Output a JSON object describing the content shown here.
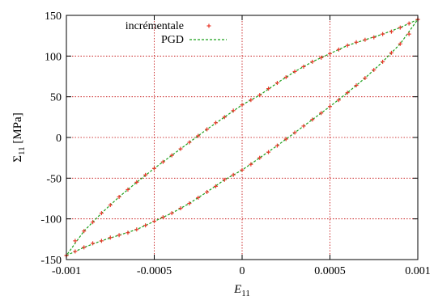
{
  "chart_data": {
    "type": "line",
    "title": "",
    "xlabel": {
      "main": "E",
      "sub": "11"
    },
    "ylabel": {
      "main": "Σ",
      "sub": "11",
      "unit": " [MPa]"
    },
    "xlim": [
      -0.001,
      0.001
    ],
    "ylim": [
      -150,
      150
    ],
    "x_ticks": [
      -0.001,
      -0.0005,
      0,
      0.0005,
      0.001
    ],
    "x_tick_labels": [
      "-0.001",
      "-0.0005",
      "0",
      "0.0005",
      "0.001"
    ],
    "y_ticks": [
      -150,
      -100,
      -50,
      0,
      50,
      100,
      150
    ],
    "y_tick_labels": [
      "-150",
      "-100",
      "-50",
      "0",
      "50",
      "100",
      "150"
    ],
    "grid": true,
    "legend_position": "top-left",
    "colors": {
      "incremental": "#e8392b",
      "pgd": "#1aa01a",
      "grid": "#c00000"
    },
    "series": [
      {
        "name": "incrémentale",
        "style": "points",
        "branches": [
          {
            "x": [
              0.001,
              0.00095,
              0.0009,
              0.00085,
              0.0008,
              0.00075,
              0.0007,
              0.00065,
              0.0006,
              0.00055,
              0.0005,
              0.00045,
              0.0004,
              0.00035,
              0.0003,
              0.00025,
              0.0002,
              0.00015,
              0.0001,
              5e-05,
              0,
              -5e-05,
              -0.0001,
              -0.00015,
              -0.0002,
              -0.00025,
              -0.0003,
              -0.00035,
              -0.0004,
              -0.00045,
              -0.0005,
              -0.00055,
              -0.0006,
              -0.00065,
              -0.0007,
              -0.00075,
              -0.0008,
              -0.00085,
              -0.0009,
              -0.00095,
              -0.001
            ],
            "y": [
              145,
              140,
              135,
              130,
              127,
              123,
              120,
              117,
              113,
              108,
              103,
              98,
              93,
              87,
              81,
              74,
              67,
              60,
              52,
              46,
              40,
              33,
              25,
              18,
              10,
              2,
              -6,
              -14,
              -22,
              -30,
              -38,
              -46,
              -55,
              -64,
              -73,
              -83,
              -93,
              -104,
              -115,
              -127,
              -145
            ]
          },
          {
            "x": [
              -0.001,
              -0.00095,
              -0.0009,
              -0.00085,
              -0.0008,
              -0.00075,
              -0.0007,
              -0.00065,
              -0.0006,
              -0.00055,
              -0.0005,
              -0.00045,
              -0.0004,
              -0.00035,
              -0.0003,
              -0.00025,
              -0.0002,
              -0.00015,
              -0.0001,
              -5e-05,
              0,
              5e-05,
              0.0001,
              0.00015,
              0.0002,
              0.00025,
              0.0003,
              0.00035,
              0.0004,
              0.00045,
              0.0005,
              0.00055,
              0.0006,
              0.00065,
              0.0007,
              0.00075,
              0.0008,
              0.00085,
              0.0009,
              0.00095,
              0.001
            ],
            "y": [
              -145,
              -140,
              -135,
              -130,
              -127,
              -123,
              -120,
              -117,
              -113,
              -108,
              -103,
              -98,
              -93,
              -87,
              -81,
              -74,
              -67,
              -60,
              -52,
              -46,
              -40,
              -33,
              -25,
              -18,
              -10,
              -2,
              6,
              14,
              22,
              30,
              38,
              46,
              55,
              64,
              73,
              83,
              93,
              104,
              115,
              127,
              145
            ]
          }
        ]
      },
      {
        "name": "PGD",
        "style": "dashed-line",
        "branches": [
          {
            "x": [
              0.001,
              0.0009,
              0.0008,
              0.0007,
              0.0006,
              0.0005,
              0.0004,
              0.0003,
              0.0002,
              0.0001,
              0,
              -0.0001,
              -0.0002,
              -0.0003,
              -0.0004,
              -0.0005,
              -0.0006,
              -0.0007,
              -0.0008,
              -0.0009,
              -0.001
            ],
            "y": [
              145,
              135,
              127,
              120,
              113,
              103,
              93,
              81,
              67,
              52,
              40,
              25,
              10,
              -6,
              -22,
              -38,
              -55,
              -73,
              -93,
              -115,
              -145
            ]
          },
          {
            "x": [
              -0.001,
              -0.0009,
              -0.0008,
              -0.0007,
              -0.0006,
              -0.0005,
              -0.0004,
              -0.0003,
              -0.0002,
              -0.0001,
              0,
              0.0001,
              0.0002,
              0.0003,
              0.0004,
              0.0005,
              0.0006,
              0.0007,
              0.0008,
              0.0009,
              0.001
            ],
            "y": [
              -145,
              -135,
              -127,
              -120,
              -113,
              -103,
              -93,
              -81,
              -67,
              -52,
              -40,
              -25,
              -10,
              6,
              22,
              38,
              55,
              73,
              93,
              115,
              145
            ]
          }
        ]
      }
    ]
  }
}
